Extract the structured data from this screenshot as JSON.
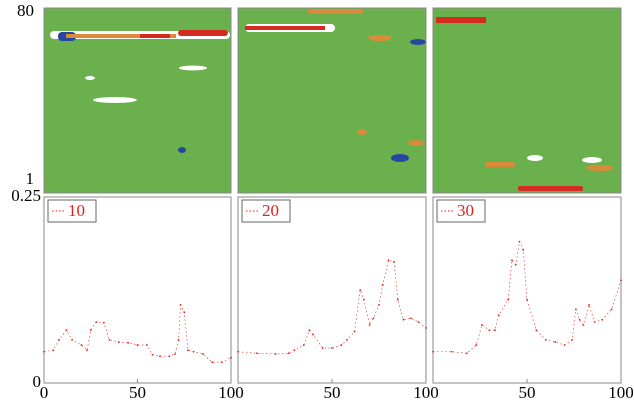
{
  "chart_data": [
    {
      "type": "heatmap",
      "ylim": [
        1,
        80
      ],
      "yticks": [
        1,
        80
      ]
    },
    {
      "type": "heatmap",
      "ylim": [
        1,
        80
      ],
      "yticks": []
    },
    {
      "type": "heatmap",
      "ylim": [
        1,
        80
      ],
      "yticks": []
    },
    {
      "type": "line",
      "xlim": [
        0,
        100
      ],
      "xticks": [
        0,
        50,
        100
      ],
      "ylim": [
        0,
        0.25
      ],
      "yticks": [
        0,
        0.25
      ],
      "legend": "upper left",
      "x": [
        0,
        5,
        8,
        12,
        15,
        20,
        23,
        25,
        28,
        32,
        35,
        40,
        45,
        50,
        55,
        58,
        62,
        67,
        70,
        72,
        73,
        75,
        77,
        80,
        85,
        90,
        95,
        100
      ],
      "series": [
        {
          "name": "10",
          "color": "#e0201a",
          "values": [
            0.042,
            0.044,
            0.058,
            0.071,
            0.058,
            0.051,
            0.044,
            0.071,
            0.082,
            0.081,
            0.058,
            0.055,
            0.054,
            0.051,
            0.051,
            0.038,
            0.036,
            0.036,
            0.039,
            0.058,
            0.105,
            0.095,
            0.044,
            0.042,
            0.039,
            0.028,
            0.028,
            0.034
          ]
        }
      ]
    },
    {
      "type": "line",
      "xlim": [
        0,
        100
      ],
      "xticks": [
        50,
        100
      ],
      "ylim": [
        0,
        0.25
      ],
      "yticks": [],
      "legend": "upper left",
      "x": [
        0,
        10,
        20,
        27,
        30,
        35,
        38,
        40,
        45,
        50,
        55,
        58,
        62,
        65,
        67,
        70,
        72,
        75,
        77,
        80,
        83,
        85,
        88,
        92,
        96,
        100
      ],
      "series": [
        {
          "name": "20",
          "color": "#e0201a",
          "values": [
            0.042,
            0.04,
            0.039,
            0.04,
            0.044,
            0.051,
            0.071,
            0.065,
            0.047,
            0.047,
            0.051,
            0.058,
            0.069,
            0.125,
            0.112,
            0.078,
            0.087,
            0.105,
            0.132,
            0.165,
            0.163,
            0.112,
            0.085,
            0.087,
            0.082,
            0.074
          ]
        }
      ]
    },
    {
      "type": "line",
      "xlim": [
        0,
        100
      ],
      "xticks": [
        50,
        100
      ],
      "ylim": [
        0,
        0.25
      ],
      "yticks": [],
      "legend": "upper left",
      "x": [
        0,
        10,
        18,
        23,
        26,
        30,
        33,
        35,
        40,
        42,
        44,
        46,
        48,
        50,
        55,
        60,
        65,
        70,
        74,
        76,
        78,
        80,
        83,
        86,
        90,
        95,
        100
      ],
      "series": [
        {
          "name": "30",
          "color": "#e0201a",
          "values": [
            0.042,
            0.042,
            0.04,
            0.051,
            0.078,
            0.071,
            0.071,
            0.091,
            0.112,
            0.165,
            0.159,
            0.19,
            0.179,
            0.112,
            0.071,
            0.058,
            0.055,
            0.051,
            0.058,
            0.099,
            0.085,
            0.078,
            0.105,
            0.082,
            0.085,
            0.099,
            0.138
          ]
        }
      ]
    }
  ]
}
